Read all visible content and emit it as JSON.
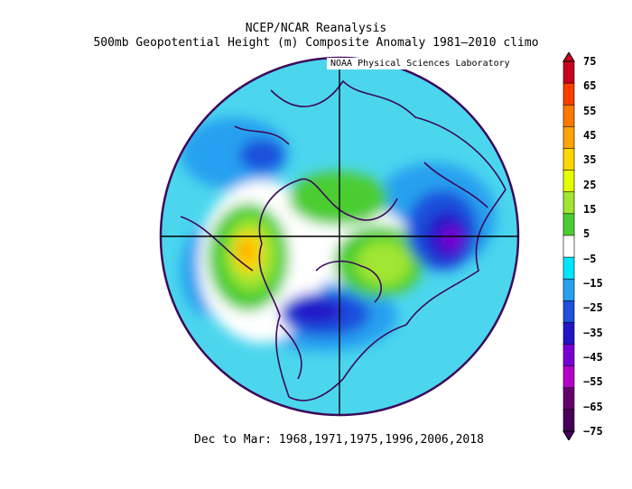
{
  "title_line1": "NCEP/NCAR Reanalysis",
  "title_line2": "500mb Geopotential Height (m) Composite Anomaly 1981–2010 climo",
  "credit": "NOAA Physical Sciences Laboratory",
  "footer": "Dec to Mar: 1968,1971,1975,1996,2006,2018",
  "colorbar": {
    "labels": [
      "75",
      "65",
      "55",
      "45",
      "35",
      "25",
      "15",
      "5",
      "−5",
      "−15",
      "−25",
      "−35",
      "−45",
      "−55",
      "−65",
      "−75"
    ],
    "colors": [
      "#c8001e",
      "#ff3c00",
      "#ff7800",
      "#ffa500",
      "#ffd700",
      "#e6ff00",
      "#a0e632",
      "#4bcd32",
      "#ffffff",
      "#00e6ff",
      "#28a0f0",
      "#1e50dc",
      "#2314c8",
      "#7800d2",
      "#b400c8",
      "#64006e",
      "#46005a"
    ]
  },
  "map": {
    "ocean_color": "#32bedc",
    "coast_color": "#3c0a5a"
  }
}
